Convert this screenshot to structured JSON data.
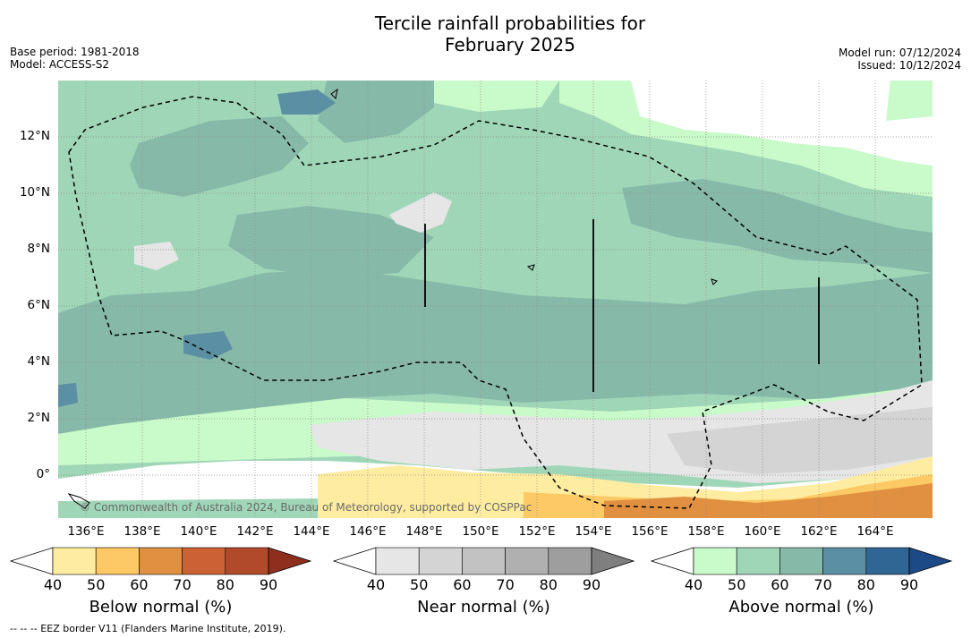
{
  "header": {
    "title": "Tercile rainfall probabilities for\nFebruary 2025",
    "base_period": "Base period: 1981-2018",
    "model": "Model: ACCESS-S2",
    "model_run": "Model run: 07/12/2024",
    "issued": "Issued: 10/12/2024"
  },
  "map": {
    "lat_labels": [
      "12°N",
      "10°N",
      "8°N",
      "6°N",
      "4°N",
      "2°N",
      "0°"
    ],
    "lon_labels": [
      "136°E",
      "138°E",
      "140°E",
      "142°E",
      "144°E",
      "146°E",
      "148°E",
      "150°E",
      "152°E",
      "154°E",
      "156°E",
      "158°E",
      "160°E",
      "162°E",
      "164°E"
    ],
    "attribution": "© Commonwealth of Australia 2024, Bureau of Meteorology, supported by COSPPac",
    "gridlines": true
  },
  "colorbars": [
    {
      "title": "Below normal (%)",
      "ticks": [
        "40",
        "50",
        "60",
        "70",
        "80",
        "90"
      ],
      "colors": [
        "#ffffff",
        "#feeda0",
        "#fdc964",
        "#e09040",
        "#cc6133",
        "#b04a2a",
        "#8e2f1e"
      ]
    },
    {
      "title": "Near normal (%)",
      "ticks": [
        "40",
        "50",
        "60",
        "70",
        "80",
        "90"
      ],
      "colors": [
        "#ffffff",
        "#e6e6e6",
        "#d4d4d4",
        "#c2c2c2",
        "#b0b0b0",
        "#9e9e9e",
        "#7f7f7f"
      ]
    },
    {
      "title": "Above normal (%)",
      "ticks": [
        "40",
        "50",
        "60",
        "70",
        "80",
        "90"
      ],
      "colors": [
        "#ffffff",
        "#c9fac9",
        "#a0d6b8",
        "#87b9a9",
        "#5b8fa3",
        "#2f6694",
        "#1c4a86"
      ]
    }
  ],
  "footnote": "--  --  -- EEZ border V11 (Flanders Marine Institute, 2019)."
}
